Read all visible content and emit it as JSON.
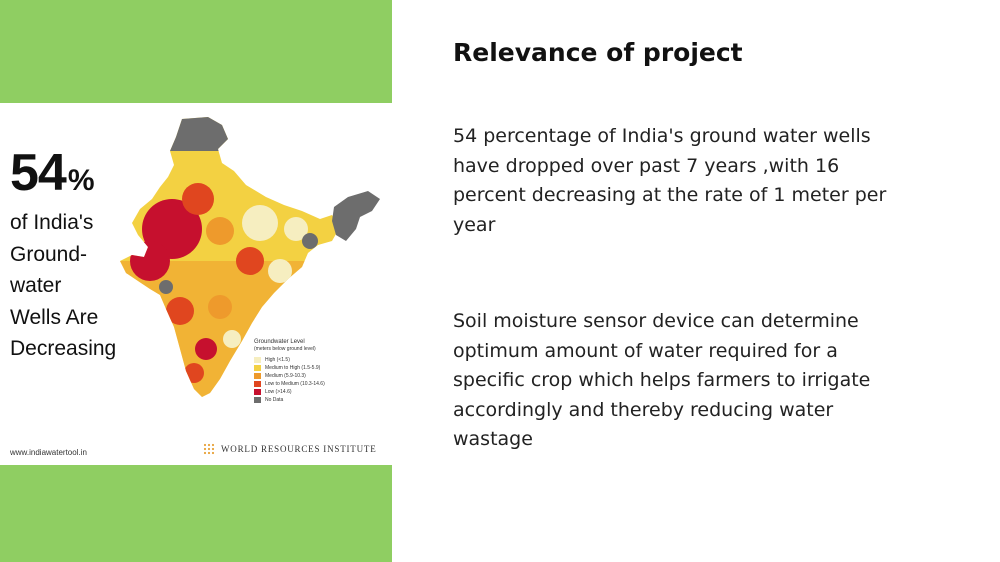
{
  "slide": {
    "title": "Relevance of project",
    "paragraph1_lines": [
      "54 percentage of India's ground water wells",
      "have dropped over past 7 years ,with 16",
      "percent decreasing at the rate of 1 meter per",
      "year"
    ],
    "paragraph2_lines": [
      "Soil moisture sensor device can determine",
      "optimum amount of water required for a",
      "specific crop which helps farmers to irrigate",
      "accordingly and thereby reducing water",
      "wastage"
    ]
  },
  "infographic": {
    "stat_number": "54",
    "stat_symbol": "%",
    "stat_lines": [
      "of India's",
      "Ground-",
      "water",
      "Wells Are",
      "Decreasing"
    ],
    "legend": {
      "title": "Groundwater Level",
      "subtitle": "(meters below ground level)",
      "items": [
        {
          "label": "High (<1.5)",
          "color": "#f6eec0"
        },
        {
          "label": "Medium to High (1.5-5.9)",
          "color": "#f3d142"
        },
        {
          "label": "Medium (5.9-10.3)",
          "color": "#ee9a2c"
        },
        {
          "label": "Low to Medium (10.3-14.6)",
          "color": "#e0461f"
        },
        {
          "label": "Low (>14.6)",
          "color": "#c6102e"
        },
        {
          "label": "No Data",
          "color": "#6d6d6d"
        }
      ]
    },
    "website": "www.indiawatertool.in",
    "org": "WORLD RESOURCES INSTITUTE"
  },
  "colors": {
    "accent_green": "#8fce62",
    "map_high": "#f6eec0",
    "map_medium_high": "#f3d142",
    "map_medium": "#ee9a2c",
    "map_low_medium": "#e0461f",
    "map_low": "#c6102e",
    "map_no_data": "#6d6d6d"
  }
}
